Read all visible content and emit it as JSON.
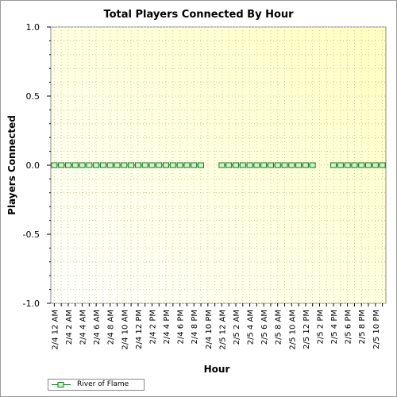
{
  "chart_data": {
    "type": "line",
    "title": "Total Players Connected By Hour",
    "xlabel": "Hour",
    "ylabel": "Players Connected",
    "ylim": [
      -1.0,
      1.0
    ],
    "yticks": [
      "1.0",
      "0.5",
      "0.0",
      "-0.5",
      "-1.0"
    ],
    "grid": true,
    "legend_position": "bottom-left",
    "colors": {
      "series": "#0a7a22",
      "marker_fill": "#d8f0c8",
      "plot_bg_top_right": "#ffffc0",
      "plot_bg_bottom_left": "#ffffff",
      "grid": "#c8c8a0"
    },
    "categories": [
      "2/4 12 AM",
      "",
      "2/4 2 AM",
      "",
      "2/4 4 AM",
      "",
      "2/4 6 AM",
      "",
      "2/4 8 AM",
      "",
      "2/4 10 AM",
      "",
      "2/4 12 PM",
      "",
      "2/4 2 PM",
      "",
      "2/4 4 PM",
      "",
      "2/4 6 PM",
      "",
      "2/4 8 PM",
      "",
      "2/4 10 PM",
      "",
      "2/5 12 AM",
      "",
      "2/5 2 AM",
      "",
      "2/5 4 AM",
      "",
      "2/5 6 AM",
      "",
      "2/5 8 AM",
      "",
      "2/5 10 AM",
      "",
      "2/5 12 PM",
      "",
      "2/5 2 PM",
      "",
      "2/5 4 PM",
      "",
      "2/5 6 PM",
      "",
      "2/5 8 PM",
      "",
      "2/5 10 PM",
      ""
    ],
    "series": [
      {
        "name": "River of Flame",
        "values": [
          0,
          0,
          0,
          0,
          0,
          0,
          0,
          0,
          0,
          0,
          0,
          0,
          0,
          0,
          0,
          0,
          0,
          0,
          0,
          0,
          0,
          0,
          null,
          null,
          0,
          0,
          0,
          0,
          0,
          0,
          0,
          0,
          0,
          0,
          0,
          0,
          0,
          0,
          null,
          null,
          0,
          0,
          0,
          0,
          0,
          0,
          0,
          0
        ]
      }
    ]
  }
}
